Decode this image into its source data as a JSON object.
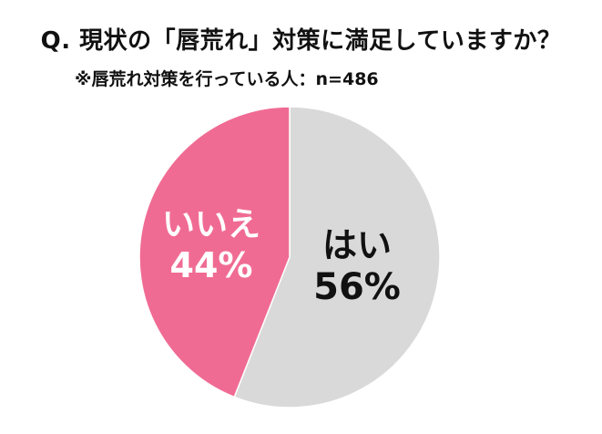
{
  "chart_data": {
    "type": "pie",
    "title": "Q. 現状の「唇荒れ」対策に満足していますか？",
    "subtitle": "※唇荒れ対策を行っている人：n=486",
    "slices": [
      {
        "label": "はい",
        "value": 56,
        "value_label": "56%",
        "color": "#d9d9d9",
        "text_color": "#111111"
      },
      {
        "label": "いいえ",
        "value": 44,
        "value_label": "44%",
        "color": "#f06b93",
        "text_color": "#ffffff"
      }
    ],
    "start": "12 o'clock",
    "direction": "clockwise"
  }
}
